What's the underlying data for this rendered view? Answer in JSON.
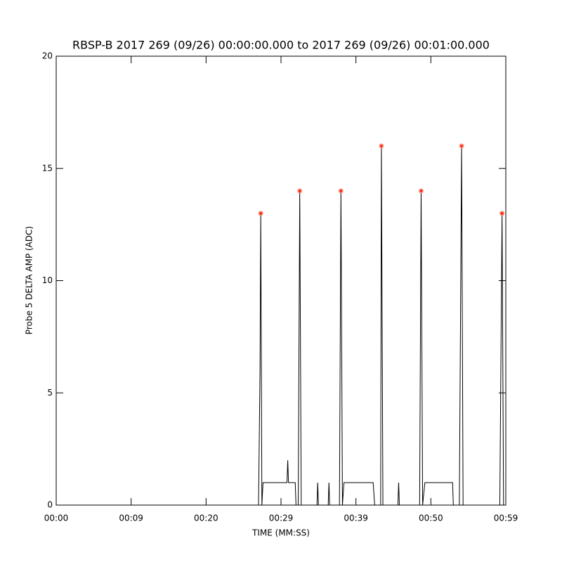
{
  "chart_data": {
    "type": "line",
    "title": "RBSP-B 2017 269 (09/26) 00:00:00.000 to 2017 269 (09/26) 00:01:00.000",
    "x_label": "TIME (MM:SS)",
    "y_label": "Probe 5 DELTA AMP (ADC)",
    "xlim": [
      0,
      60
    ],
    "xticks": [
      {
        "value": 0,
        "label": "00:00"
      },
      {
        "value": 10,
        "label": "00:09"
      },
      {
        "value": 20,
        "label": "00:20"
      },
      {
        "value": 30,
        "label": "00:29"
      },
      {
        "value": 40,
        "label": "00:39"
      },
      {
        "value": 50,
        "label": "00:50"
      },
      {
        "value": 60,
        "label": "00:59"
      }
    ],
    "ylim": [
      0,
      20
    ],
    "yticks": [
      0,
      5,
      10,
      15,
      20
    ],
    "series": [
      {
        "color": "#000000",
        "style": "line",
        "x": [
          0,
          27.0,
          27.2,
          27.3,
          27.45,
          27.6,
          30.8,
          30.9,
          31.0,
          31.9,
          32.0,
          32.3,
          32.5,
          32.7,
          34.8,
          34.9,
          35.0,
          36.3,
          36.4,
          36.5,
          37.8,
          38.0,
          38.2,
          38.4,
          42.3,
          42.5,
          43.3,
          43.4,
          43.6,
          45.6,
          45.7,
          45.8,
          48.5,
          48.7,
          48.9,
          49.2,
          52.9,
          53.0,
          53.8,
          54.1,
          54.3,
          59.2,
          59.5,
          59.7,
          60
        ],
        "values": [
          0,
          0,
          6,
          13,
          0,
          1,
          1,
          2,
          1,
          1,
          0,
          0,
          14,
          0,
          0,
          1,
          0,
          0,
          1,
          0,
          0,
          14,
          0,
          1,
          1,
          0,
          0,
          16,
          0,
          0,
          1,
          0,
          0,
          14,
          0,
          1,
          1,
          0,
          0,
          16,
          0,
          0,
          13,
          0,
          0
        ]
      },
      {
        "color": "#ff2000",
        "style": "star",
        "x": [
          27.3,
          32.5,
          38.0,
          43.4,
          48.7,
          54.1,
          59.5
        ],
        "values": [
          13,
          14,
          14,
          16,
          14,
          16,
          13
        ]
      }
    ]
  }
}
